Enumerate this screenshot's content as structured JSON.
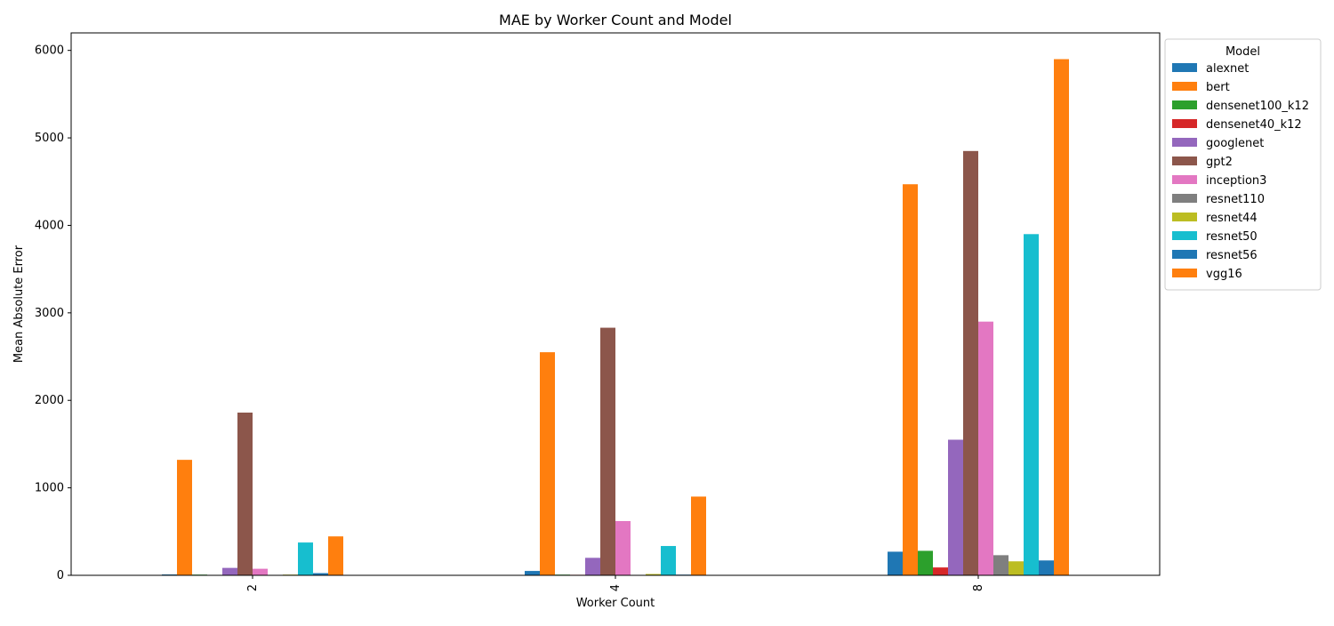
{
  "chart_data": {
    "type": "bar",
    "title": "MAE by Worker Count and Model",
    "xlabel": "Worker Count",
    "ylabel": "Mean Absolute Error",
    "categories": [
      "2",
      "4",
      "8"
    ],
    "ylim": [
      0,
      6200
    ],
    "yticks": [
      0,
      1000,
      2000,
      3000,
      4000,
      5000,
      6000
    ],
    "grid": false,
    "legend": {
      "title": "Model",
      "placement": "outside-top-right"
    },
    "series": [
      {
        "name": "alexnet",
        "color": "#1f77b4",
        "values": [
          10,
          50,
          270
        ]
      },
      {
        "name": "bert",
        "color": "#ff7f0e",
        "values": [
          1320,
          2550,
          4470
        ]
      },
      {
        "name": "densenet100_k12",
        "color": "#2ca02c",
        "values": [
          8,
          8,
          280
        ]
      },
      {
        "name": "densenet40_k12",
        "color": "#d62728",
        "values": [
          2,
          6,
          90
        ]
      },
      {
        "name": "googlenet",
        "color": "#9467bd",
        "values": [
          85,
          200,
          1550
        ]
      },
      {
        "name": "gpt2",
        "color": "#8c564b",
        "values": [
          1860,
          2830,
          4850
        ]
      },
      {
        "name": "inception3",
        "color": "#e377c2",
        "values": [
          75,
          620,
          2900
        ]
      },
      {
        "name": "resnet110",
        "color": "#7f7f7f",
        "values": [
          2,
          3,
          230
        ]
      },
      {
        "name": "resnet44",
        "color": "#bcbd22",
        "values": [
          8,
          15,
          160
        ]
      },
      {
        "name": "resnet50",
        "color": "#17becf",
        "values": [
          375,
          335,
          3900
        ]
      },
      {
        "name": "resnet56",
        "color": "#1f77b4",
        "values": [
          25,
          8,
          170
        ]
      },
      {
        "name": "vgg16",
        "color": "#ff7f0e",
        "values": [
          445,
          900,
          5900
        ]
      }
    ]
  }
}
